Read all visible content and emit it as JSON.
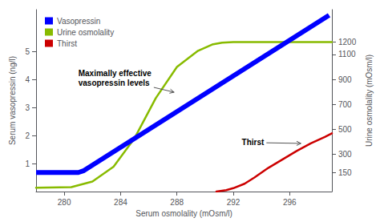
{
  "chart_data": {
    "type": "line",
    "xlabel": "Serum osmolality (mOsm/l)",
    "ylabel": "Serum vasopressin (ng/l)",
    "y2label": "Urine osmolality (mOsm/l)",
    "xlim": [
      278,
      299
    ],
    "xticks": [
      280,
      284,
      288,
      292,
      296
    ],
    "ylim": [
      0,
      6.5
    ],
    "yticks": [
      1,
      2,
      3,
      4,
      5
    ],
    "y2lim": [
      0,
      1460
    ],
    "y2ticks": [
      150,
      300,
      500,
      700,
      900,
      1100,
      1200
    ],
    "grid": false,
    "legend": "upper left",
    "series": [
      {
        "name": "Vasopressin",
        "color": "#0000ff",
        "x": [
          278.0,
          281.0,
          281.4,
          298.8
        ],
        "values": [
          0.68,
          0.68,
          0.75,
          6.3
        ]
      },
      {
        "name": "Urine osmolality",
        "color": "#88bb00",
        "axis": "y2",
        "x": [
          278.0,
          280.5,
          282.0,
          283.5,
          285.0,
          286.5,
          288.0,
          289.5,
          290.5,
          291.2,
          292.0,
          293.0,
          299.0
        ],
        "values": [
          30,
          35,
          80,
          200,
          430,
          750,
          1000,
          1130,
          1180,
          1195,
          1200,
          1200,
          1200
        ]
      },
      {
        "name": "Thirst",
        "color": "#cc0000",
        "x": [
          290.8,
          291.5,
          292.0,
          292.8,
          293.5,
          294.5,
          295.5,
          296.5,
          297.5,
          298.5,
          299.0
        ],
        "values": [
          0.0,
          0.05,
          0.12,
          0.28,
          0.5,
          0.85,
          1.15,
          1.45,
          1.72,
          1.95,
          2.08
        ]
      }
    ],
    "annotations": [
      {
        "text": "Maximally effective\nvasopressin levels",
        "x": 281.0,
        "y": 4.05,
        "arrow_x": 287.8,
        "arrow_y": 3.55
      },
      {
        "text": "Thirst",
        "x": 292.6,
        "y": 1.75,
        "arrow_x": 296.8,
        "arrow_y": 1.72
      }
    ]
  }
}
